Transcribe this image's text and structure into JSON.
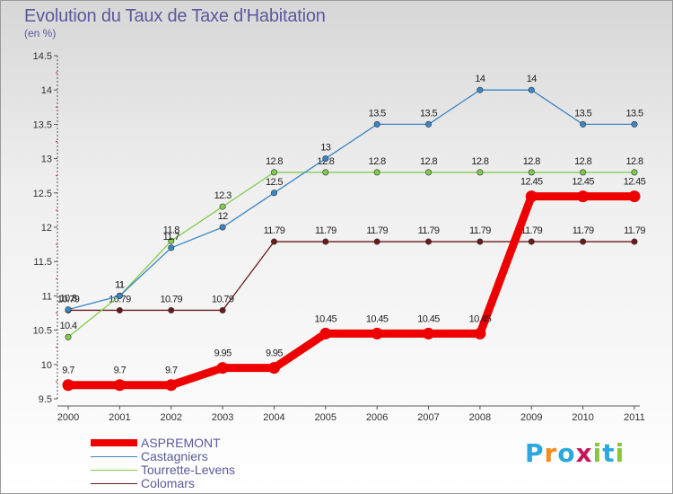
{
  "title": "Evolution du Taux de Taxe d'Habitation",
  "subtitle": "(en %)",
  "brand": "Proxiti",
  "brand_colors": [
    "#2ba8e0",
    "#f28c1a",
    "#2ba8e0",
    "#c2185b",
    "#8bc53f",
    "#2ba8e0",
    "#8bc53f"
  ],
  "chart_data": {
    "type": "line",
    "title": "Evolution du Taux de Taxe d'Habitation",
    "ylabel": "(en %)",
    "xlabel": "",
    "x": [
      "2000",
      "2001",
      "2002",
      "2003",
      "2004",
      "2005",
      "2006",
      "2007",
      "2008",
      "2009",
      "2010",
      "2011"
    ],
    "ylim": [
      9.5,
      14.5
    ],
    "yticks": [
      "9.5",
      "10",
      "10.5",
      "11",
      "11.5",
      "12",
      "12.5",
      "13",
      "13.5",
      "14",
      "14.5"
    ],
    "grid": false,
    "legend_position": "bottom-left",
    "series": [
      {
        "name": "Colomars",
        "color": "#6b1a1a",
        "values": [
          10.79,
          10.79,
          10.79,
          10.79,
          11.79,
          11.79,
          11.79,
          11.79,
          11.79,
          11.79,
          11.79,
          11.79
        ],
        "labels": [
          "10.79",
          "10.79",
          "10.79",
          "10.79",
          "11.79",
          "11.79",
          "11.79",
          "11.79",
          "11.79",
          "11.79",
          "11.79",
          "11.79"
        ]
      },
      {
        "name": "Tourrette-Levens",
        "color": "#7fcc4a",
        "values": [
          10.4,
          11,
          11.8,
          12.3,
          12.8,
          12.8,
          12.8,
          12.8,
          12.8,
          12.8,
          12.8,
          12.8
        ],
        "labels": [
          "10.4",
          "11",
          "11.8",
          "12.3",
          "12.8",
          "12.8",
          "12.8",
          "12.8",
          "12.8",
          "12.8",
          "12.8",
          "12.8"
        ]
      },
      {
        "name": "Castagniers",
        "color": "#3a86c6",
        "values": [
          10.8,
          11,
          11.7,
          12,
          12.5,
          13,
          13.5,
          13.5,
          14,
          14,
          13.5,
          13.5
        ],
        "labels": [
          "10.8",
          "11",
          "11.7",
          "12",
          "12.5",
          "13",
          "13.5",
          "13.5",
          "14",
          "14",
          "13.5",
          "13.5"
        ]
      },
      {
        "name": "ASPREMONT",
        "color": "#ee0000",
        "values": [
          9.7,
          9.7,
          9.7,
          9.95,
          9.95,
          10.45,
          10.45,
          10.45,
          10.45,
          12.45,
          12.45,
          12.45
        ],
        "labels": [
          "9.7",
          "9.7",
          "9.7",
          "9.95",
          "9.95",
          "10.45",
          "10.45",
          "10.45",
          "10.45",
          "12.45",
          "12.45",
          "12.45"
        ]
      }
    ]
  },
  "legend": {
    "items": [
      {
        "label": "ASPREMONT",
        "color": "#ee0000",
        "thick": true
      },
      {
        "label": "Castagniers",
        "color": "#3a86c6",
        "thick": false
      },
      {
        "label": "Tourrette-Levens",
        "color": "#7fcc4a",
        "thick": false
      },
      {
        "label": "Colomars",
        "color": "#6b1a1a",
        "thick": false
      }
    ]
  }
}
